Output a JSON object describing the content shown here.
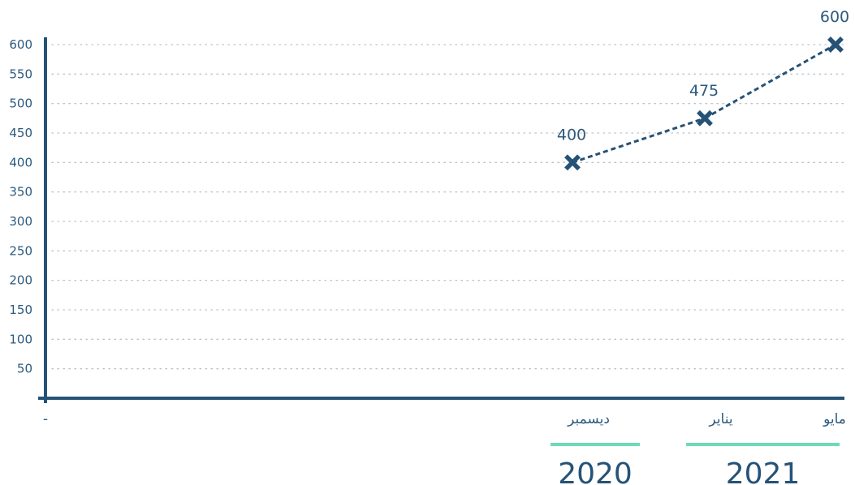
{
  "chart_data": {
    "type": "line",
    "categories": [
      "-",
      "ديسمبر",
      "يناير",
      "مايو"
    ],
    "series": [
      {
        "values": [
          null,
          400,
          475,
          600
        ]
      }
    ],
    "data_labels": [
      "",
      "400",
      "475",
      "600"
    ],
    "y_ticks": [
      "50",
      "100",
      "150",
      "200",
      "250",
      "300",
      "350",
      "400",
      "450",
      "500",
      "550",
      "600"
    ],
    "ylim": [
      0,
      600
    ],
    "grid": "horizontal-dotted",
    "year_groups": [
      {
        "label": "2020",
        "categories": [
          "ديسمبر"
        ]
      },
      {
        "label": "2021",
        "categories": [
          "يناير",
          "مايو"
        ]
      }
    ],
    "colors": {
      "axis": "#255277",
      "line": "#255277",
      "marker": "#255277",
      "text": "#2c5a7d",
      "grid": "#b9c3cb",
      "year_bar": "#6bdcb8"
    }
  }
}
